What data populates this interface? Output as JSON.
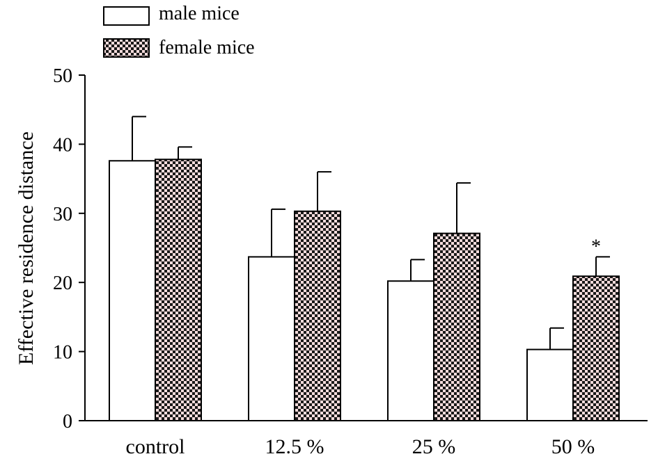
{
  "chart_data": {
    "type": "bar",
    "title": "",
    "xlabel": "",
    "ylabel": "Effective residence distance",
    "categories": [
      "control",
      "12.5 %",
      "25 %",
      "50 %"
    ],
    "ylim": [
      0,
      50
    ],
    "yticks": [
      0,
      10,
      20,
      30,
      40,
      50
    ],
    "series": [
      {
        "name": "male mice",
        "fill": "white",
        "values": [
          37.6,
          23.7,
          20.2,
          10.3
        ],
        "errors": [
          6.4,
          6.9,
          3.1,
          3.1
        ]
      },
      {
        "name": "female mice",
        "fill": "checker",
        "values": [
          37.8,
          30.3,
          27.1,
          20.9
        ],
        "errors": [
          1.8,
          5.7,
          7.3,
          2.8
        ]
      }
    ],
    "annotations": [
      {
        "category": "50 %",
        "series": "female mice",
        "text": "*"
      }
    ],
    "legend_position": "top-left",
    "colors": {
      "checker_dark": "#1a1a1a",
      "checker_light": "#f6dcdc",
      "bar_stroke": "#000000"
    }
  }
}
